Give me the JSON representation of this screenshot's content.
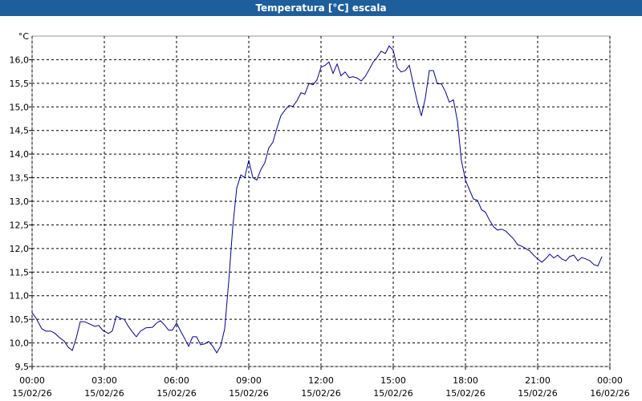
{
  "chart_data": {
    "type": "line",
    "title": "Temperatura [°C] escala",
    "y_unit": "°C",
    "xlim": [
      0,
      24
    ],
    "ylim": [
      9.5,
      16.5
    ],
    "grid": true,
    "xticks": [
      {
        "value": 0,
        "label": [
          "00:00",
          "15/02/26"
        ]
      },
      {
        "value": 3,
        "label": [
          "03:00",
          "15/02/26"
        ]
      },
      {
        "value": 6,
        "label": [
          "06:00",
          "15/02/26"
        ]
      },
      {
        "value": 9,
        "label": [
          "09:00",
          "15/02/26"
        ]
      },
      {
        "value": 12,
        "label": [
          "12:00",
          "15/02/26"
        ]
      },
      {
        "value": 15,
        "label": [
          "15:00",
          "15/02/26"
        ]
      },
      {
        "value": 18,
        "label": [
          "18:00",
          "15/02/26"
        ]
      },
      {
        "value": 21,
        "label": [
          "21:00",
          "15/02/26"
        ]
      },
      {
        "value": 24,
        "label": [
          "00:00",
          "16/02/26"
        ]
      }
    ],
    "yticks": [
      {
        "value": 9.5,
        "label": "9,5"
      },
      {
        "value": 10,
        "label": "10,0"
      },
      {
        "value": 10.5,
        "label": "10,5"
      },
      {
        "value": 11,
        "label": "11,0"
      },
      {
        "value": 11.5,
        "label": "11,5"
      },
      {
        "value": 12,
        "label": "12,0"
      },
      {
        "value": 12.5,
        "label": "12,5"
      },
      {
        "value": 13,
        "label": "13,0"
      },
      {
        "value": 13.5,
        "label": "13,5"
      },
      {
        "value": 14,
        "label": "14,0"
      },
      {
        "value": 14.5,
        "label": "14,5"
      },
      {
        "value": 15,
        "label": "15,0"
      },
      {
        "value": 15.5,
        "label": "15,5"
      },
      {
        "value": 16,
        "label": "16,0"
      }
    ],
    "x": [
      0,
      0.17,
      0.4,
      0.57,
      0.77,
      0.93,
      1.17,
      1.33,
      1.5,
      1.67,
      1.83,
      2,
      2.17,
      2.4,
      2.6,
      2.77,
      2.93,
      3.17,
      3.33,
      3.5,
      3.67,
      3.83,
      4,
      4.17,
      4.33,
      4.5,
      4.73,
      5,
      5.17,
      5.33,
      5.5,
      5.67,
      5.83,
      6,
      6.17,
      6.33,
      6.5,
      6.67,
      6.83,
      7,
      7.17,
      7.33,
      7.5,
      7.67,
      7.83,
      8,
      8.17,
      8.33,
      8.5,
      8.67,
      8.83,
      9,
      9.17,
      9.33,
      9.5,
      9.67,
      9.83,
      10,
      10.17,
      10.33,
      10.5,
      10.67,
      10.83,
      11,
      11.17,
      11.33,
      11.5,
      11.67,
      11.83,
      12,
      12.17,
      12.33,
      12.5,
      12.67,
      12.83,
      13,
      13.17,
      13.33,
      13.5,
      13.67,
      13.83,
      14,
      14.17,
      14.33,
      14.5,
      14.67,
      14.83,
      15,
      15.17,
      15.33,
      15.5,
      15.67,
      15.83,
      16,
      16.17,
      16.33,
      16.5,
      16.67,
      16.83,
      17,
      17.17,
      17.33,
      17.5,
      17.67,
      17.83,
      18,
      18.17,
      18.33,
      18.5,
      18.67,
      18.83,
      19,
      19.17,
      19.33,
      19.5,
      19.67,
      19.83,
      20,
      20.17,
      20.33,
      20.5,
      20.67,
      20.83,
      21,
      21.17,
      21.33,
      21.5,
      21.67,
      21.83,
      22,
      22.17,
      22.33,
      22.5,
      22.67,
      22.83,
      23,
      23.17,
      23.33,
      23.5,
      23.67
    ],
    "series": [
      {
        "color": "#0000a0",
        "values": [
          10.64,
          10.52,
          10.3,
          10.25,
          10.25,
          10.21,
          10.1,
          10.04,
          9.91,
          9.84,
          10.1,
          10.45,
          10.45,
          10.4,
          10.35,
          10.37,
          10.27,
          10.2,
          10.25,
          10.57,
          10.52,
          10.5,
          10.35,
          10.23,
          10.13,
          10.25,
          10.32,
          10.33,
          10.42,
          10.47,
          10.38,
          10.27,
          10.27,
          10.42,
          10.25,
          10.1,
          9.93,
          10.13,
          10.13,
          9.96,
          9.98,
          10.03,
          9.93,
          9.79,
          9.93,
          10.3,
          11.32,
          12.43,
          13.28,
          13.56,
          13.5,
          13.87,
          13.5,
          13.45,
          13.67,
          13.82,
          14.13,
          14.25,
          14.55,
          14.81,
          14.93,
          15.03,
          15.01,
          15.13,
          15.3,
          15.27,
          15.5,
          15.47,
          15.57,
          15.84,
          15.88,
          15.95,
          15.71,
          15.91,
          15.66,
          15.74,
          15.62,
          15.64,
          15.61,
          15.55,
          15.64,
          15.79,
          15.95,
          16.05,
          16.18,
          16.13,
          16.29,
          16.2,
          15.83,
          15.74,
          15.77,
          15.88,
          15.49,
          15.11,
          14.81,
          15.18,
          15.77,
          15.77,
          15.49,
          15.49,
          15.32,
          15.1,
          15.15,
          14.69,
          13.87,
          13.45,
          13.24,
          13.05,
          13.02,
          12.82,
          12.77,
          12.6,
          12.46,
          12.39,
          12.41,
          12.37,
          12.29,
          12.2,
          12.08,
          12.05,
          12,
          11.95,
          11.86,
          11.78,
          11.71,
          11.78,
          11.88,
          11.8,
          11.86,
          11.78,
          11.74,
          11.83,
          11.86,
          11.74,
          11.81,
          11.78,
          11.74,
          11.66,
          11.63,
          11.83
        ]
      }
    ]
  }
}
